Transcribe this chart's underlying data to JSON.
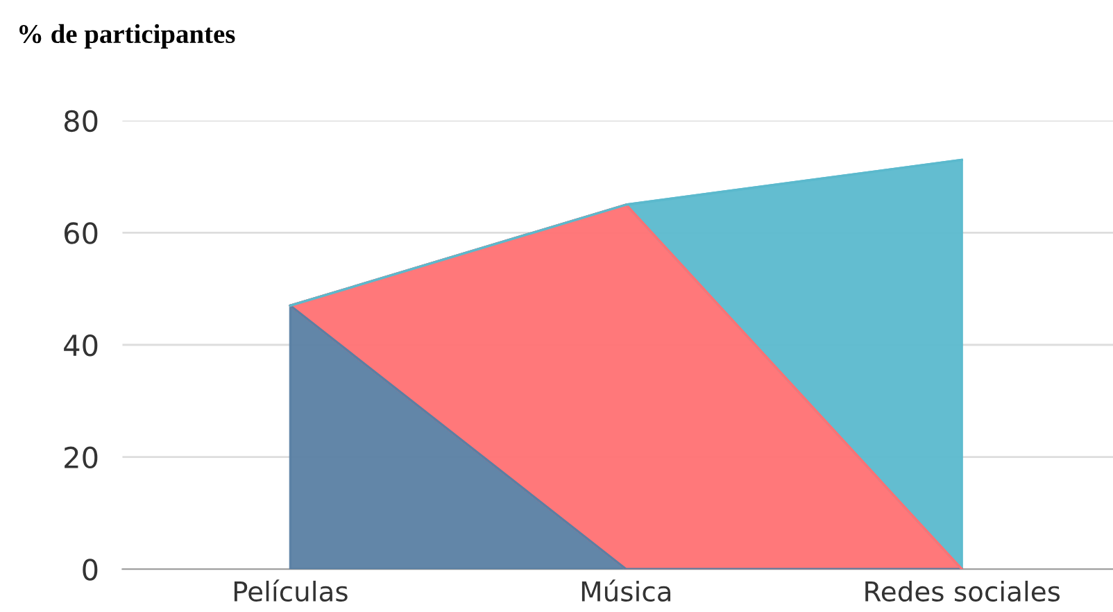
{
  "chart_data": {
    "type": "area",
    "title": "% de participantes",
    "categories": [
      "Películas",
      "Música",
      "Redes sociales"
    ],
    "stacked": true,
    "series": [
      {
        "color": "#5a7fa3",
        "values": [
          47,
          0,
          0
        ]
      },
      {
        "color": "#ff7173",
        "values": [
          0,
          65,
          0
        ]
      },
      {
        "color": "#5bb9cd",
        "values": [
          0,
          0,
          73
        ]
      }
    ],
    "ylim": [
      0,
      80
    ],
    "yticks": [
      0,
      20,
      40,
      60,
      80
    ],
    "grid": "y",
    "legend": false
  }
}
